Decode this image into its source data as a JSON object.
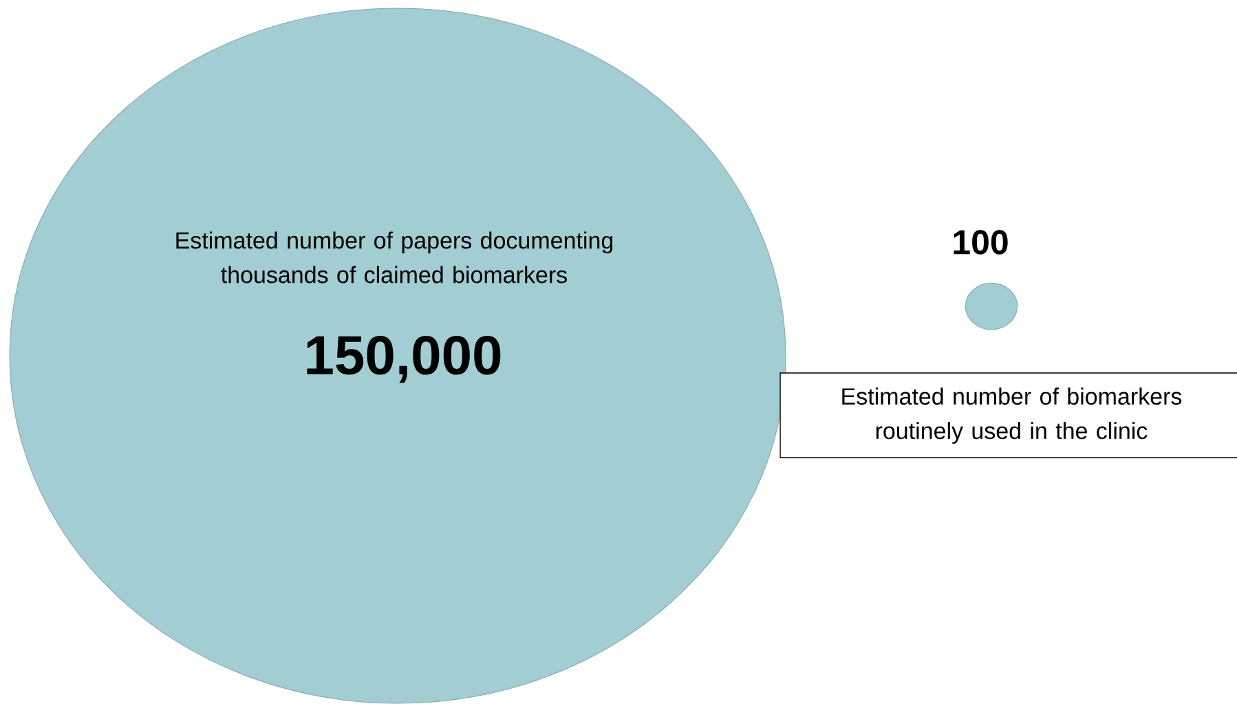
{
  "chart_data": {
    "type": "other",
    "categories": [
      "Estimated number of papers documenting thousands of claimed biomarkers",
      "Estimated number of biomarkers routinely used in the clinic"
    ],
    "values": [
      150000,
      100
    ],
    "value_labels": [
      "150,000",
      "100"
    ],
    "color": "#a2cdd2"
  }
}
